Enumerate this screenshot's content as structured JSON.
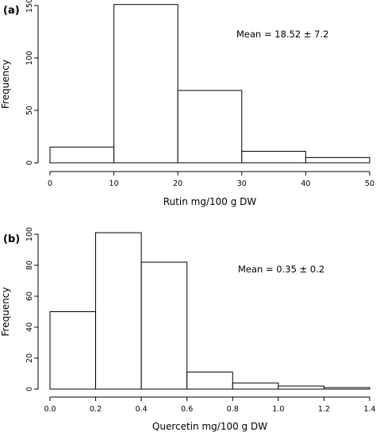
{
  "chart_data": [
    {
      "type": "bar",
      "panel_label": "(a)",
      "xlabel": "Rutin mg/100 g DW",
      "ylabel": "Frequency",
      "annotation": "Mean = 18.52 ± 7.2",
      "bins": [
        [
          0,
          10
        ],
        [
          10,
          20
        ],
        [
          20,
          30
        ],
        [
          30,
          40
        ],
        [
          40,
          50
        ]
      ],
      "values": [
        15,
        151,
        69,
        11,
        5
      ],
      "xlim": [
        0,
        50
      ],
      "ylim": [
        0,
        150
      ],
      "xticks": [
        0,
        10,
        20,
        30,
        40,
        50
      ],
      "yticks": [
        0,
        50,
        100,
        150
      ],
      "xtick_labels": [
        "0",
        "10",
        "20",
        "30",
        "40",
        "50"
      ],
      "ytick_labels": [
        "0",
        "50",
        "100",
        "150"
      ],
      "grid": false
    },
    {
      "type": "bar",
      "panel_label": "(b)",
      "xlabel": "Quercetin mg/100 g DW",
      "ylabel": "Frequency",
      "annotation": "Mean = 0.35 ± 0.2",
      "bins": [
        [
          0.0,
          0.2
        ],
        [
          0.2,
          0.4
        ],
        [
          0.4,
          0.6
        ],
        [
          0.6,
          0.8
        ],
        [
          0.8,
          1.0
        ],
        [
          1.0,
          1.2
        ],
        [
          1.2,
          1.4
        ]
      ],
      "values": [
        50,
        101,
        82,
        11,
        4,
        2,
        1
      ],
      "xlim": [
        0,
        1.4
      ],
      "ylim": [
        0,
        100
      ],
      "xticks": [
        0.0,
        0.2,
        0.4,
        0.6,
        0.8,
        1.0,
        1.2,
        1.4
      ],
      "yticks": [
        0,
        20,
        40,
        60,
        80,
        100
      ],
      "xtick_labels": [
        "0.0",
        "0.2",
        "0.4",
        "0.6",
        "0.8",
        "1.0",
        "1.2",
        "1.4"
      ],
      "ytick_labels": [
        "0",
        "20",
        "40",
        "60",
        "80",
        "100"
      ],
      "grid": false
    }
  ]
}
